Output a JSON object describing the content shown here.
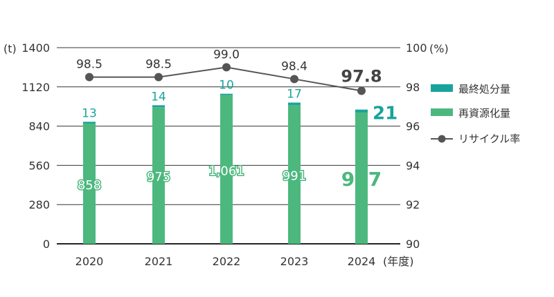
{
  "chart_data": {
    "type": "bar",
    "categories": [
      "2020",
      "2021",
      "2022",
      "2023",
      "2024"
    ],
    "x_unit": "(年度)",
    "y_left": {
      "unit": "(t)",
      "ticks": [
        "0",
        "280",
        "560",
        "840",
        "1120",
        "1400"
      ],
      "ylim": [
        0,
        1400
      ]
    },
    "y_right": {
      "unit": "(%)",
      "ticks": [
        "90",
        "92",
        "94",
        "96",
        "98",
        "100"
      ],
      "ylim": [
        90,
        100
      ]
    },
    "series": [
      {
        "name": "最終処分量",
        "type": "bar-stacked",
        "values": [
          13,
          14,
          10,
          17,
          21
        ],
        "labels": [
          "13",
          "14",
          "10",
          "17",
          "21"
        ],
        "color": "#1aa39c"
      },
      {
        "name": "再資源化量",
        "type": "bar-stacked",
        "values": [
          858,
          975,
          1061,
          991,
          937
        ],
        "labels": [
          "858",
          "975",
          "1,061",
          "991",
          "937"
        ],
        "color": "#4cb87e"
      },
      {
        "name": "リサイクル率",
        "type": "line",
        "axis": "right",
        "values": [
          98.5,
          98.5,
          99.0,
          98.4,
          97.8
        ],
        "labels": [
          "98.5",
          "98.5",
          "99.0",
          "98.4",
          "97.8"
        ],
        "color": "#555555"
      }
    ],
    "highlight_color": "#1aa39c",
    "text_color": "#333333",
    "legend": "right"
  }
}
